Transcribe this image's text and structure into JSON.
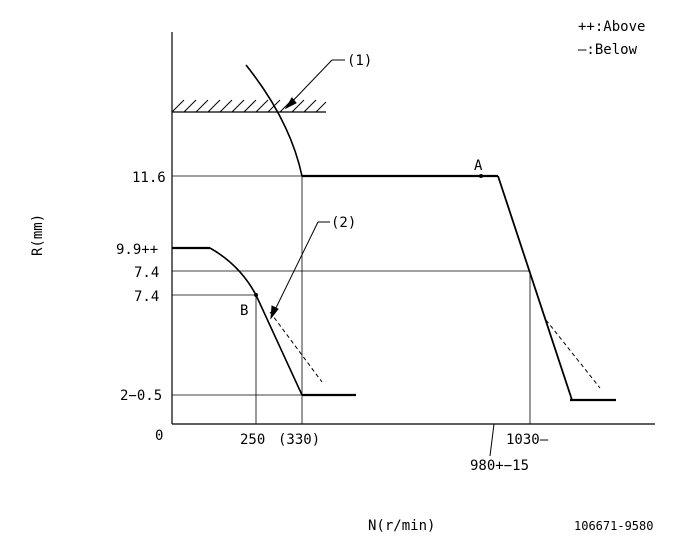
{
  "legend": {
    "above": "++:Above",
    "below": "—:Below"
  },
  "axes": {
    "y_label": "R(mm)",
    "x_label": "N(r/min)",
    "origin": "0"
  },
  "y_ticks": {
    "t11_6": "11.6",
    "t9_9": "9.9++",
    "t7_4_a": "7.4",
    "t7_4_b": "7.4",
    "t2": "2−0.5"
  },
  "x_ticks": {
    "t250": "250",
    "t330": "(330)",
    "t1030": "1030—",
    "t980": "980+−15"
  },
  "callouts": {
    "c1": "(1)",
    "c2": "(2)",
    "point_a": "A",
    "point_b": "B"
  },
  "footer": {
    "code": "106671-9580"
  }
}
